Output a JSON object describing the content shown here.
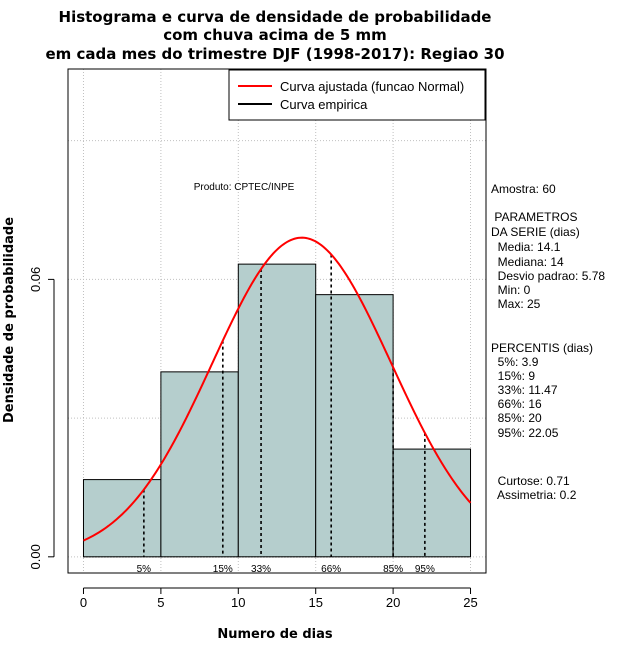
{
  "chart_data": {
    "type": "histogram",
    "title": [
      "Histograma e curva de densidade de probabilidade",
      "com chuva acima de 5 mm",
      "em cada mes do trimestre DJF (1998-2017): Regiao 30"
    ],
    "xlabel": "Numero de dias",
    "ylabel": "Densidade de probabilidade",
    "xlim": [
      -1,
      26
    ],
    "ylim": [
      -0.0035,
      0.1055
    ],
    "x_ticks": [
      "0",
      "5",
      "10",
      "15",
      "20",
      "25"
    ],
    "y_ticks": [
      "0.00",
      "0.06"
    ],
    "bins": [
      {
        "from": 0,
        "to": 5,
        "density": 0.0167
      },
      {
        "from": 5,
        "to": 10,
        "density": 0.04
      },
      {
        "from": 10,
        "to": 15,
        "density": 0.0633
      },
      {
        "from": 15,
        "to": 20,
        "density": 0.0567
      },
      {
        "from": 20,
        "to": 25,
        "density": 0.0233
      }
    ],
    "normal_fit": {
      "mean": 14.1,
      "sd": 5.78,
      "from": 0,
      "to": 25
    },
    "percentile_lines": [
      {
        "label": "5%",
        "x": 3.9
      },
      {
        "label": "15%",
        "x": 9
      },
      {
        "label": "33%",
        "x": 11.47
      },
      {
        "label": "66%",
        "x": 16
      },
      {
        "label": "85%",
        "x": 20
      },
      {
        "label": "95%",
        "x": 22.05
      }
    ],
    "legend": [
      {
        "label": "Curva ajustada (funcao Normal)",
        "color": "#ff0000"
      },
      {
        "label": "Curva empirica",
        "color": "#000000"
      }
    ],
    "annotation": "Produto: CPTEC/INPE",
    "colors": {
      "bar_fill": "#b5cecd",
      "curve": "#ff0000",
      "grid": "#c0c0c0"
    }
  },
  "side_panel": [
    "Amostra: 60",
    " PARAMETROS",
    "DA SERIE (dias)",
    "  Media: 14.1",
    "  Mediana: 14",
    "  Desvio padrao: 5.78",
    "  Min: 0",
    "  Max: 25",
    "PERCENTIS (dias)",
    "  5%: 3.9",
    "  15%: 9",
    "  33%: 11.47",
    "  66%: 16",
    "  85%: 20",
    "  95%: 22.05",
    "  Curtose: 0.71",
    "  Assimetria: 0.2"
  ]
}
